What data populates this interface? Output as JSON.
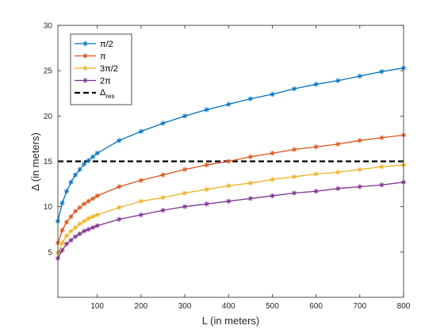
{
  "chart_data": {
    "type": "line",
    "xlabel": "L (in meters)",
    "ylabel": "Δ (in meters)",
    "xlim": [
      10,
      800
    ],
    "ylim": [
      0,
      30
    ],
    "xticks": [
      100,
      200,
      300,
      400,
      500,
      600,
      700,
      800
    ],
    "yticks": [
      5,
      10,
      15,
      20,
      25,
      30
    ],
    "grid": false,
    "legend_position": "top-left",
    "x": [
      10,
      20,
      30,
      40,
      50,
      60,
      70,
      80,
      90,
      100,
      150,
      200,
      250,
      300,
      350,
      400,
      450,
      500,
      550,
      600,
      650,
      700,
      750,
      800
    ],
    "series": [
      {
        "name": "π/2",
        "color": "#0072BD",
        "marker": "asterisk",
        "values": [
          8.4,
          10.4,
          11.7,
          12.7,
          13.5,
          14.1,
          14.7,
          15.1,
          15.5,
          15.9,
          17.3,
          18.3,
          19.2,
          20.0,
          20.7,
          21.3,
          21.9,
          22.4,
          23.0,
          23.5,
          23.9,
          24.4,
          24.9,
          25.3
        ]
      },
      {
        "name": "π",
        "color": "#D95319",
        "marker": "asterisk",
        "values": [
          6.0,
          7.4,
          8.3,
          8.9,
          9.5,
          9.9,
          10.3,
          10.6,
          10.9,
          11.2,
          12.2,
          12.9,
          13.5,
          14.1,
          14.6,
          15.0,
          15.5,
          15.9,
          16.3,
          16.6,
          16.9,
          17.3,
          17.6,
          17.9
        ]
      },
      {
        "name": "3π/2",
        "color": "#EDB120",
        "marker": "asterisk",
        "values": [
          4.9,
          6.0,
          6.8,
          7.3,
          7.7,
          8.1,
          8.4,
          8.7,
          8.9,
          9.1,
          9.9,
          10.6,
          11.0,
          11.5,
          11.9,
          12.3,
          12.6,
          13.0,
          13.3,
          13.6,
          13.8,
          14.1,
          14.4,
          14.6
        ]
      },
      {
        "name": "2π",
        "color": "#7E2F8E",
        "marker": "asterisk",
        "values": [
          4.3,
          5.2,
          5.9,
          6.3,
          6.7,
          7.0,
          7.3,
          7.5,
          7.7,
          7.9,
          8.6,
          9.1,
          9.6,
          10.0,
          10.3,
          10.6,
          10.9,
          11.2,
          11.5,
          11.7,
          12.0,
          12.2,
          12.4,
          12.7
        ]
      }
    ],
    "reference_line": {
      "name_main": "Δ",
      "name_sub": "res",
      "value": 15,
      "color": "#000000",
      "style": "dashed"
    }
  }
}
